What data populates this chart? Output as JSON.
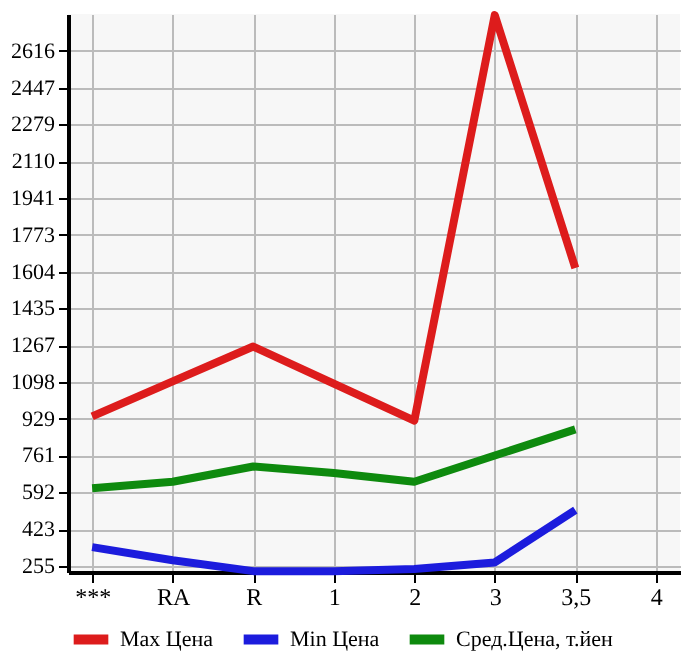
{
  "chart_data": {
    "type": "line",
    "categories": [
      "***",
      "RA",
      "R",
      "1",
      "2",
      "3",
      "3,5",
      "4"
    ],
    "series": [
      {
        "name": "Max Цена",
        "color": "#dd1c1c",
        "values": [
          940,
          1100,
          1260,
          1090,
          920,
          2780,
          1620,
          null
        ]
      },
      {
        "name": "Min Цена",
        "color": "#1c1cdd",
        "values": [
          340,
          280,
          230,
          230,
          240,
          270,
          510,
          null
        ]
      },
      {
        "name": "Сред.Цена, т.йен",
        "color": "#0e8a0e",
        "values": [
          610,
          640,
          710,
          680,
          640,
          760,
          880,
          null
        ]
      }
    ],
    "ylim": [
      226,
      2785
    ],
    "yticks": [
      255,
      423,
      592,
      761,
      929,
      1098,
      1267,
      1435,
      1604,
      1773,
      1941,
      2110,
      2279,
      2447,
      2616
    ],
    "grid": true,
    "legend": "bottom",
    "marker": "none",
    "line_style": "solid"
  }
}
